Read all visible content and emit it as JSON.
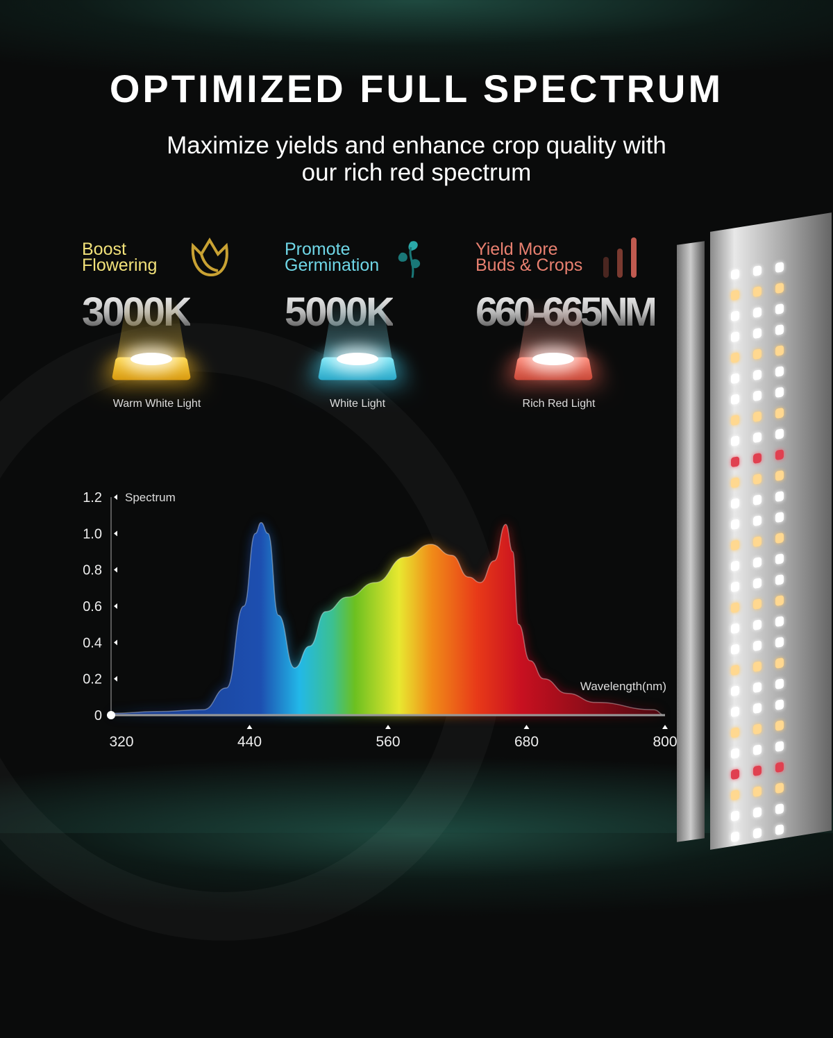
{
  "header": {
    "title": "OPTIMIZED FULL SPECTRUM",
    "subtitle_line1": "Maximize yields and enhance crop quality with",
    "subtitle_line2": "our rich red spectrum"
  },
  "features": [
    {
      "heading": "Boost\nFlowering",
      "value": "3000K",
      "caption": "Warm White Light",
      "color": "#f2e27a",
      "chip_color": "#f5b820",
      "icon": "tulip-icon"
    },
    {
      "heading": "Promote\nGermination",
      "value": "5000K",
      "caption": "White Light",
      "color": "#6fd6e6",
      "chip_color": "#3cc8e8",
      "icon": "sprout-icon"
    },
    {
      "heading": "Yield More\nBuds & Crops",
      "value": "660-665NM",
      "caption": "Rich Red Light",
      "color": "#e88070",
      "chip_color": "#f06050",
      "icon": "bar-chart-icon"
    }
  ],
  "chart_data": {
    "type": "area",
    "title": "",
    "ylabel": "Spectrum",
    "xlabel": "Wavelength(nm)",
    "xlim": [
      320,
      800
    ],
    "ylim": [
      0,
      1.2
    ],
    "x_ticks": [
      "320",
      "440",
      "560",
      "680",
      "800"
    ],
    "y_ticks": [
      "0",
      "0.2",
      "0.4",
      "0.6",
      "0.8",
      "1.0",
      "1.2"
    ],
    "grid": false,
    "points": [
      [
        320,
        0.01
      ],
      [
        360,
        0.02
      ],
      [
        400,
        0.03
      ],
      [
        420,
        0.15
      ],
      [
        435,
        0.6
      ],
      [
        445,
        1.0
      ],
      [
        450,
        1.06
      ],
      [
        456,
        1.0
      ],
      [
        465,
        0.55
      ],
      [
        479,
        0.26
      ],
      [
        492,
        0.38
      ],
      [
        506,
        0.57
      ],
      [
        525,
        0.65
      ],
      [
        549,
        0.73
      ],
      [
        575,
        0.87
      ],
      [
        597,
        0.94
      ],
      [
        615,
        0.88
      ],
      [
        630,
        0.76
      ],
      [
        640,
        0.73
      ],
      [
        652,
        0.85
      ],
      [
        662,
        1.05
      ],
      [
        668,
        0.9
      ],
      [
        673,
        0.5
      ],
      [
        683,
        0.3
      ],
      [
        695,
        0.2
      ],
      [
        715,
        0.12
      ],
      [
        740,
        0.07
      ],
      [
        790,
        0.03
      ],
      [
        800,
        0.0
      ]
    ]
  }
}
